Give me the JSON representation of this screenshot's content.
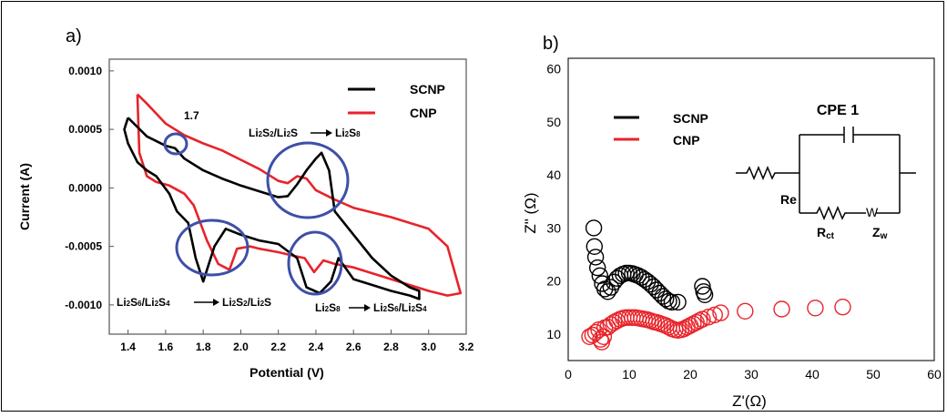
{
  "chart_data": [
    {
      "type": "line",
      "panel_label": "a)",
      "xlabel": "Potential (V)",
      "ylabel": "Current (A)",
      "xlim": [
        1.3,
        3.2
      ],
      "ylim": [
        -0.00125,
        0.0011
      ],
      "x_ticks": [
        "1.4",
        "1.6",
        "1.8",
        "2.0",
        "2.2",
        "2.4",
        "2.6",
        "2.8",
        "3.0",
        "3.2"
      ],
      "y_ticks": [
        "0.0010",
        "0.0005",
        "0.0000",
        "-0.0005",
        "-0.0010"
      ],
      "y_tick_values": [
        0.001,
        0.0005,
        0.0,
        -0.0005,
        -0.001
      ],
      "legend": {
        "placement": "top-right",
        "entries": [
          "SCNP",
          "CNP"
        ]
      },
      "colors": {
        "SCNP": "#000000",
        "CNP": "#e8232a"
      },
      "series": [
        {
          "name": "SCNP",
          "x": [
            1.4,
            1.45,
            1.5,
            1.6,
            1.65,
            1.7,
            1.8,
            1.9,
            2.0,
            2.1,
            2.2,
            2.25,
            2.3,
            2.35,
            2.4,
            2.43,
            2.47,
            2.5,
            2.6,
            2.7,
            2.8,
            2.9,
            2.95,
            2.95,
            2.9,
            2.8,
            2.7,
            2.6,
            2.52,
            2.48,
            2.42,
            2.35,
            2.3,
            2.2,
            2.1,
            2.0,
            1.92,
            1.86,
            1.8,
            1.76,
            1.72,
            1.66,
            1.62,
            1.55,
            1.5,
            1.45,
            1.4,
            1.38,
            1.4
          ],
          "y": [
            0.0006,
            0.00052,
            0.00044,
            0.00036,
            0.00034,
            0.00025,
            0.00015,
            8e-05,
            2e-05,
            -3e-05,
            -8e-05,
            -7e-05,
            3e-05,
            0.00015,
            0.00025,
            0.0003,
            0.00015,
            -0.0002,
            -0.0004,
            -0.0006,
            -0.00075,
            -0.00085,
            -0.00088,
            -0.00095,
            -0.00092,
            -0.00088,
            -0.00083,
            -0.00078,
            -0.0006,
            -0.0008,
            -0.0009,
            -0.00085,
            -0.0006,
            -0.00048,
            -0.00045,
            -0.0004,
            -0.00035,
            -0.0005,
            -0.0008,
            -0.0006,
            -0.0003,
            -0.0002,
            -5e-05,
            0.0001,
            0.00015,
            0.00022,
            0.00038,
            0.0005,
            0.0006
          ]
        },
        {
          "name": "CNP",
          "x": [
            1.45,
            1.5,
            1.6,
            1.7,
            1.8,
            1.9,
            2.0,
            2.1,
            2.2,
            2.25,
            2.3,
            2.35,
            2.4,
            2.45,
            2.5,
            2.6,
            2.8,
            3.0,
            3.1,
            3.17,
            3.1,
            3.0,
            2.8,
            2.6,
            2.5,
            2.44,
            2.39,
            2.34,
            2.28,
            2.2,
            2.1,
            2.05,
            1.98,
            1.94,
            1.88,
            1.82,
            1.75,
            1.7,
            1.62,
            1.55,
            1.5,
            1.46,
            1.45
          ],
          "y": [
            0.0008,
            0.00072,
            0.00055,
            0.00045,
            0.00038,
            0.00032,
            0.00024,
            0.00016,
            6e-05,
            4e-05,
            0.0001,
            8e-05,
            -2e-05,
            -6e-05,
            -0.0001,
            -0.00017,
            -0.00025,
            -0.00035,
            -0.0005,
            -0.0009,
            -0.00092,
            -0.00088,
            -0.00078,
            -0.00068,
            -0.00065,
            -0.00062,
            -0.00072,
            -0.0006,
            -0.00058,
            -0.00055,
            -0.00052,
            -0.0005,
            -0.00052,
            -0.0007,
            -0.00065,
            -0.00045,
            -0.00015,
            -5e-05,
            2e-05,
            5e-05,
            0.0001,
            0.0003,
            0.0008
          ]
        }
      ],
      "annotations": {
        "v17": "1.7",
        "reaction1": {
          "a": "Li",
          "b": "2",
          "c": "S",
          "d": "2",
          "e": "/Li",
          "f": "2",
          "g": "S",
          "h": "Li",
          "i": "2",
          "j": "S",
          "k": "8"
        },
        "reaction2": {
          "a": "Li",
          "b": "2",
          "c": "S",
          "d": "6",
          "e": "/Li",
          "f": "2",
          "g": "S",
          "h": "4",
          "i": "Li",
          "j": "2",
          "k": "S",
          "l": "2",
          "m": "/Li",
          "n": "2",
          "o": "S"
        },
        "reaction3": {
          "a": "Li",
          "b": "2",
          "c": "S",
          "d": "8",
          "e": "Li",
          "f": "2",
          "g": "S",
          "h": "6",
          "i": "/Li",
          "j": "2",
          "k": "S",
          "l": "4"
        }
      }
    },
    {
      "type": "scatter",
      "panel_label": "b)",
      "xlabel": "Z'(Ω)",
      "ylabel": "Z\" (Ω)",
      "xlim": [
        0,
        60
      ],
      "ylim": [
        5,
        62
      ],
      "x_ticks": [
        "0",
        "10",
        "20",
        "30",
        "40",
        "50",
        "60"
      ],
      "y_ticks": [
        "10",
        "20",
        "30",
        "40",
        "50",
        "60"
      ],
      "legend": {
        "placement": "top-left",
        "entries": [
          "SCNP",
          "CNP"
        ]
      },
      "colors": {
        "SCNP": "#000000",
        "CNP": "#e8232a"
      },
      "series": [
        {
          "name": "SCNP",
          "x": [
            4.2,
            4.3,
            4.5,
            4.8,
            5.2,
            5.6,
            6.0,
            6.5,
            7.0,
            7.5,
            8.0,
            8.5,
            9.0,
            9.5,
            10.0,
            10.5,
            11.0,
            11.5,
            12.0,
            12.5,
            13.0,
            13.5,
            14.0,
            14.5,
            15.0,
            15.5,
            16.0,
            16.5,
            17.0,
            18.0,
            22.0,
            22.2,
            22.4
          ],
          "y": [
            30.0,
            26.5,
            24.5,
            22.5,
            21.0,
            19.5,
            18.5,
            18.0,
            18.8,
            19.8,
            20.5,
            21.0,
            21.3,
            21.5,
            21.5,
            21.4,
            21.2,
            21.0,
            20.7,
            20.3,
            19.9,
            19.4,
            18.9,
            18.3,
            17.7,
            17.1,
            16.6,
            16.2,
            16.0,
            16.0,
            19.0,
            18.0,
            17.4
          ]
        },
        {
          "name": "CNP",
          "x": [
            3.5,
            4.0,
            4.5,
            5.0,
            5.3,
            5.5,
            5.8,
            6.0,
            6.5,
            7.0,
            7.5,
            8.0,
            8.5,
            9.0,
            9.5,
            10.0,
            10.5,
            11.0,
            11.5,
            12.0,
            12.5,
            13.0,
            13.5,
            14.0,
            14.5,
            15.0,
            15.5,
            16.0,
            16.5,
            17.0,
            17.5,
            18.0,
            18.5,
            19.0,
            19.5,
            20.0,
            20.5,
            21.0,
            21.5,
            22.0,
            23.0,
            24.0,
            25.0,
            29.0,
            35.0,
            40.5,
            45.0
          ],
          "y": [
            9.5,
            9.8,
            10.3,
            10.8,
            9.0,
            8.5,
            9.5,
            11.2,
            11.3,
            11.8,
            12.2,
            12.5,
            12.8,
            13.0,
            13.1,
            13.1,
            13.1,
            13.1,
            13.0,
            12.9,
            12.8,
            12.7,
            12.5,
            12.3,
            12.2,
            12.0,
            11.8,
            11.6,
            11.3,
            11.0,
            10.8,
            10.7,
            10.8,
            11.0,
            11.3,
            11.6,
            11.9,
            12.2,
            12.5,
            12.8,
            13.2,
            13.6,
            14.0,
            14.3,
            14.7,
            14.9,
            15.1
          ]
        }
      ],
      "inset": {
        "title": "CPE 1",
        "labels": {
          "re": "Re",
          "rct_a": "R",
          "rct_b": "ct",
          "zw_a": "Z",
          "zw_b": "w",
          "warburg": "W"
        }
      }
    }
  ]
}
